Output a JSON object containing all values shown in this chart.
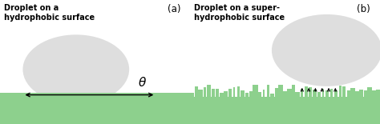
{
  "bg_color": "#ffffff",
  "surface_color": "#8dd08d",
  "droplet_face": "#c8c8c8",
  "droplet_alpha": 0.6,
  "panel_a_label": "(a)",
  "panel_b_label": "(b)",
  "title_a": "Droplet on a\nhydrophobic surface",
  "title_b": "Droplet on a super-\nhydrophobic surface",
  "theta_label": "θ",
  "font_size_title": 7.0,
  "font_size_panel": 8.5,
  "font_size_theta": 11
}
